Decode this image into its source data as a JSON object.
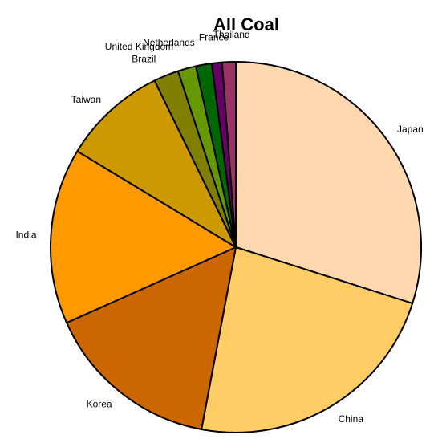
{
  "chart_data": {
    "type": "pie",
    "title": "All Coal",
    "start_angle_deg": 0,
    "direction": "clockwise",
    "slices": [
      {
        "label": "Japan",
        "value": 30.2,
        "color": "#FFD8B0"
      },
      {
        "label": "China",
        "value": 23.3,
        "color": "#FFCC66"
      },
      {
        "label": "Korea",
        "value": 15.5,
        "color": "#CC6600"
      },
      {
        "label": "India",
        "value": 15.5,
        "color": "#FF9900"
      },
      {
        "label": "Taiwan",
        "value": 9.2,
        "color": "#CC9900"
      },
      {
        "label": "Brazil",
        "value": 2.2,
        "color": "#807F00"
      },
      {
        "label": "United Kingdom",
        "value": 1.6,
        "color": "#669900"
      },
      {
        "label": "Netherlands",
        "value": 1.4,
        "color": "#006600"
      },
      {
        "label": "France",
        "value": 0.9,
        "color": "#660066"
      },
      {
        "label": "Thailand",
        "value": 1.2,
        "color": "#993366"
      }
    ]
  }
}
